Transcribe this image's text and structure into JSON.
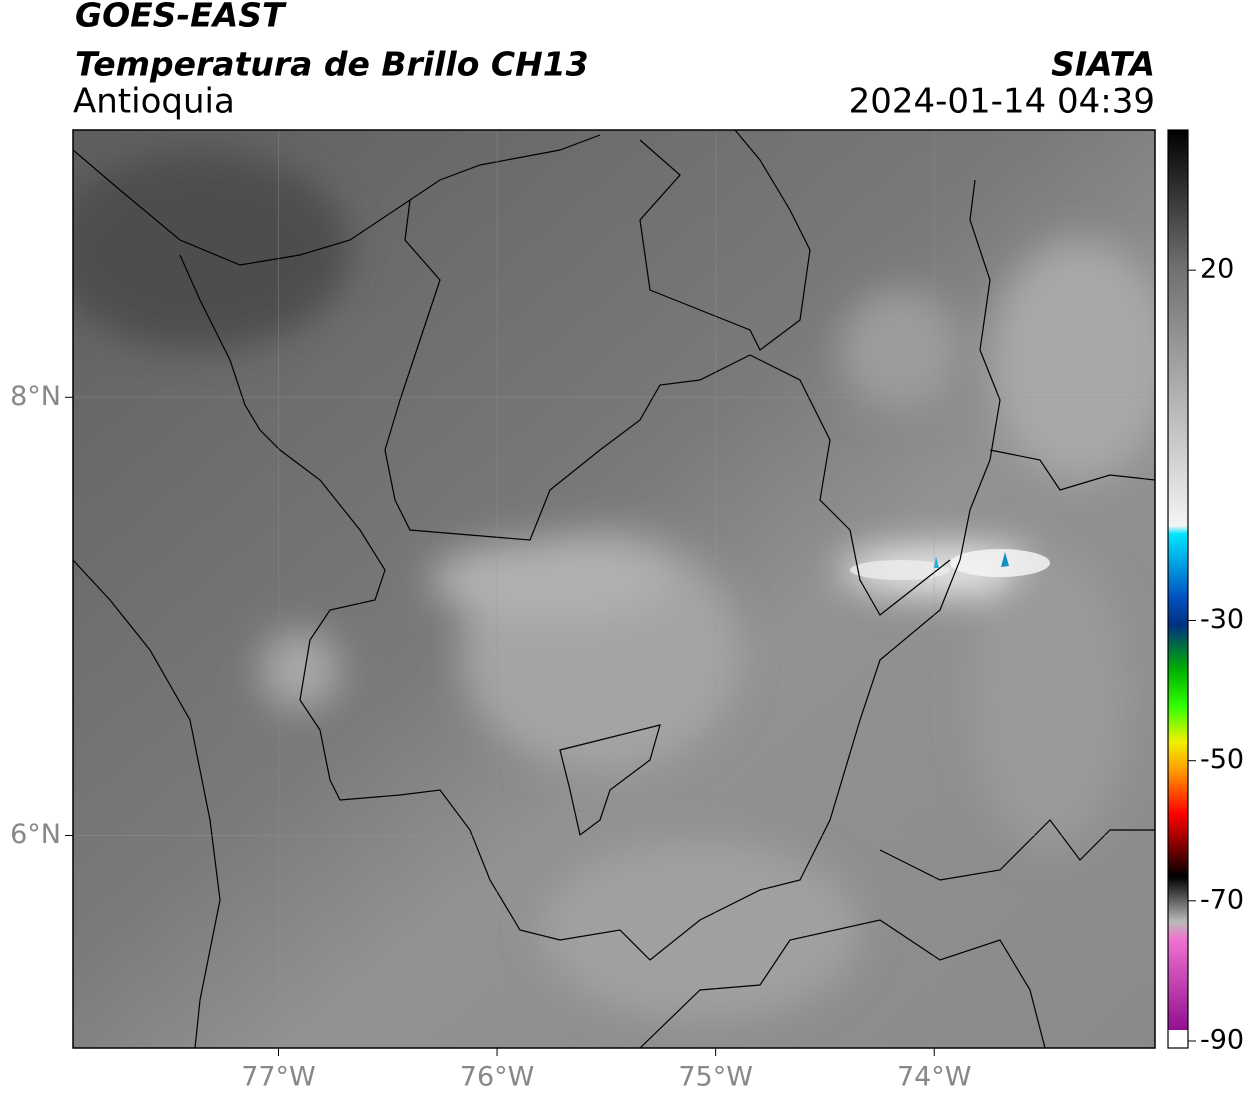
{
  "header": {
    "satellite": "GOES-EAST",
    "product": "Temperatura de Brillo CH13",
    "region": "Antioquia",
    "agency": "SIATA",
    "datetime": "2024-01-14 04:39"
  },
  "map": {
    "xlim": [
      -77.94,
      -72.99
    ],
    "ylim": [
      5.03,
      9.22
    ],
    "xticks": [
      {
        "value": -77,
        "label": "77°W"
      },
      {
        "value": -76,
        "label": "76°W"
      },
      {
        "value": -75,
        "label": "75°W"
      },
      {
        "value": -74,
        "label": "74°W"
      }
    ],
    "yticks": [
      {
        "value": 8,
        "label": "8°N"
      },
      {
        "value": 6,
        "label": "6°N"
      }
    ],
    "grid": true
  },
  "colorbar": {
    "lim": [
      -91,
      40
    ],
    "ticks": [
      20,
      -30,
      -50,
      -70,
      -90
    ]
  }
}
